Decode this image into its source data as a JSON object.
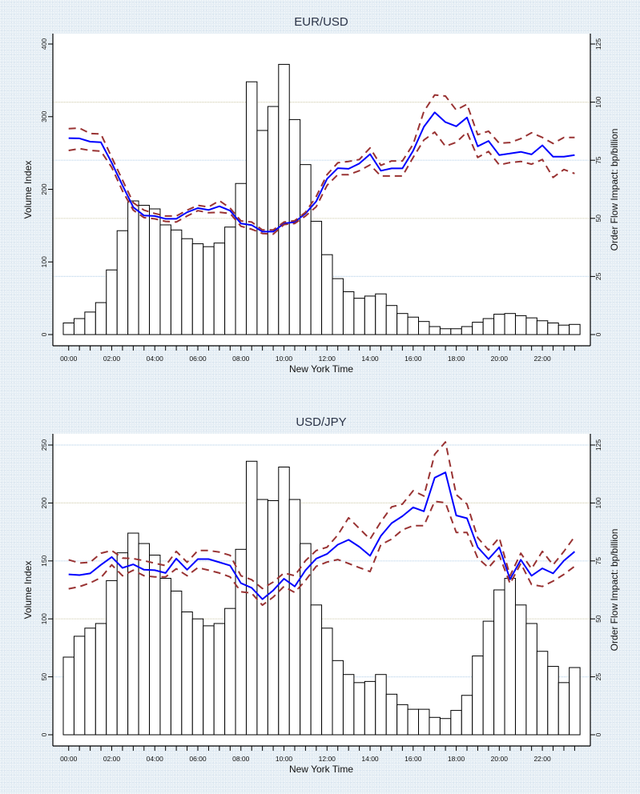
{
  "chart_data": [
    {
      "type": "bar",
      "title": "EUR/USD",
      "xlabel": "New York Time",
      "ylabel": "Volume Index",
      "y2label": "Order Flow Impact: bp/billion",
      "ylim": [
        0,
        400
      ],
      "y2lim": [
        0,
        125
      ],
      "yticks": [
        "0",
        "100",
        "200",
        "300",
        "400"
      ],
      "y2ticks": [
        "0",
        "25",
        "50",
        "75",
        "100",
        "125"
      ],
      "xticks": [
        "00:00",
        "02:00",
        "04:00",
        "06:00",
        "08:00",
        "10:00",
        "12:00",
        "14:00",
        "16:00",
        "18:00",
        "20:00",
        "22:00"
      ],
      "grid": "horizontal on right axis at 25, 50, 75, 100",
      "bin_minutes": 30,
      "series": [
        {
          "name": "Volume Index",
          "kind": "bar",
          "axis": "left",
          "values": [
            16,
            22,
            31,
            44,
            89,
            143,
            184,
            178,
            173,
            151,
            144,
            132,
            125,
            121,
            126,
            148,
            208,
            348,
            281,
            314,
            372,
            296,
            234,
            156,
            110,
            77,
            59,
            50,
            53,
            56,
            40,
            29,
            24,
            18,
            11,
            8,
            8,
            11,
            17,
            22,
            28,
            29,
            26,
            23,
            19,
            16,
            13,
            14
          ]
        },
        {
          "name": "Order Flow Impact",
          "kind": "line",
          "axis": "right",
          "color": "#0000ff",
          "values": [
            84.5,
            84.4,
            83,
            82.7,
            73.9,
            64.2,
            54.8,
            51.2,
            51,
            49.8,
            49.8,
            52.6,
            54.4,
            53.6,
            55.2,
            53.3,
            47.8,
            47.1,
            44.3,
            44.3,
            47.8,
            48.4,
            52.1,
            57.3,
            67,
            71.6,
            71.3,
            73.6,
            77.6,
            70.5,
            71.5,
            71.5,
            79.1,
            89.4,
            95.6,
            91.4,
            89.6,
            93.4,
            81,
            83.3,
            77.2,
            77.9,
            78.6,
            77.5,
            81.4,
            76.5,
            76.5,
            77.2
          ]
        },
        {
          "name": "Upper Band",
          "kind": "dashed-line",
          "axis": "right",
          "color": "#993333",
          "values": [
            88.6,
            88.8,
            86.5,
            86.3,
            76.2,
            66.5,
            56.7,
            53.5,
            52.1,
            51,
            51,
            53.5,
            55.6,
            54.9,
            57.6,
            54.4,
            48.9,
            48.4,
            45,
            45,
            48.4,
            49,
            52.6,
            59.4,
            68.8,
            73.9,
            74.5,
            75.3,
            80.3,
            72.8,
            74.7,
            74.7,
            81.9,
            96,
            103.1,
            102.6,
            96.6,
            99.1,
            86,
            87.5,
            82.3,
            82.6,
            84.3,
            86.8,
            84.8,
            82.2,
            84.8,
            84.8
          ]
        },
        {
          "name": "Lower Band",
          "kind": "dashed-line",
          "axis": "right",
          "color": "#993333",
          "values": [
            79.2,
            80,
            79.2,
            78.9,
            71.9,
            61.8,
            53.5,
            50.3,
            49.8,
            48.7,
            48.4,
            51,
            53.3,
            52.4,
            52.6,
            52.1,
            46.6,
            45.3,
            43.5,
            43.2,
            47.3,
            47.8,
            51,
            55,
            64.2,
            68.8,
            68.8,
            70.5,
            73,
            68.2,
            68.2,
            68.2,
            76.2,
            83.7,
            87.1,
            81,
            82.7,
            87.1,
            76.2,
            78.8,
            73,
            74,
            74.5,
            73.3,
            75.3,
            67.6,
            71,
            69.3
          ]
        }
      ]
    },
    {
      "type": "bar",
      "title": "USD/JPY",
      "xlabel": "New York Time",
      "ylabel": "Volume Index",
      "y2label": "Order Flow Impact: bp/billion",
      "ylim": [
        0,
        250
      ],
      "y2lim": [
        0,
        125
      ],
      "yticks": [
        "0",
        "50",
        "100",
        "150",
        "200",
        "250"
      ],
      "y2ticks": [
        "0",
        "25",
        "50",
        "75",
        "100",
        "125"
      ],
      "xticks": [
        "00:00",
        "02:00",
        "04:00",
        "06:00",
        "08:00",
        "10:00",
        "12:00",
        "14:00",
        "16:00",
        "18:00",
        "20:00",
        "22:00"
      ],
      "grid": "horizontal on right axis at 25, 50, 75, 100, 125",
      "bin_minutes": 30,
      "series": [
        {
          "name": "Volume Index",
          "kind": "bar",
          "axis": "left",
          "values": [
            67,
            85,
            92,
            96,
            133,
            157,
            174,
            165,
            155,
            135,
            124,
            106,
            100,
            94,
            96,
            109,
            160,
            236,
            203,
            202,
            231,
            203,
            165,
            112,
            92,
            64,
            52,
            45,
            46,
            52,
            35,
            26,
            22,
            22,
            15,
            14,
            21,
            34,
            68,
            98,
            125,
            135,
            112,
            96,
            72,
            59,
            45,
            58
          ]
        },
        {
          "name": "Order Flow Impact",
          "kind": "line",
          "axis": "right",
          "color": "#0000ff",
          "values": [
            69.2,
            68.9,
            69.6,
            73.3,
            76.7,
            72,
            73.5,
            71.2,
            71,
            69.8,
            76,
            71.2,
            75.8,
            75.8,
            74.4,
            73,
            65.4,
            63.4,
            58.5,
            62.3,
            67.3,
            64,
            71,
            76,
            78,
            82,
            84.1,
            81.1,
            77.2,
            85.8,
            91.3,
            94.3,
            98.1,
            96.4,
            110.9,
            113.2,
            94.6,
            93.4,
            80.9,
            75.8,
            80.9,
            67.1,
            75.5,
            68.6,
            71.8,
            69.6,
            75.1,
            79
          ]
        },
        {
          "name": "Upper Band",
          "kind": "dashed-line",
          "axis": "right",
          "color": "#993333",
          "values": [
            75.5,
            74.1,
            74.4,
            78.3,
            79.5,
            76.2,
            76,
            75.1,
            74,
            73,
            79.1,
            74.4,
            79.5,
            79.5,
            78.8,
            77.4,
            68.6,
            66.9,
            63.1,
            65.9,
            69.8,
            68.6,
            75.1,
            79.5,
            80.9,
            86.2,
            93.6,
            89,
            84.4,
            91.9,
            98.3,
            99.5,
            105.3,
            103,
            121,
            126.3,
            103.6,
            99.5,
            85,
            79.7,
            85,
            68.6,
            78.3,
            71.6,
            79.1,
            73.3,
            79.1,
            85.5
          ]
        },
        {
          "name": "Lower Band",
          "kind": "dashed-line",
          "axis": "right",
          "color": "#993333",
          "values": [
            63,
            63.9,
            65.5,
            67.8,
            73.3,
            68.6,
            71,
            68.6,
            68.1,
            68.1,
            71.6,
            68.6,
            72.1,
            71,
            69.8,
            68.1,
            61.7,
            61.1,
            55.9,
            59.4,
            64,
            61.4,
            66.6,
            72.7,
            74.5,
            75.6,
            73.9,
            72.1,
            70.4,
            82,
            84.4,
            88.4,
            90.2,
            90.2,
            100.7,
            100.1,
            87.3,
            87.3,
            76.2,
            72.1,
            77.4,
            65.2,
            73.9,
            64.8,
            64,
            66.3,
            69.2,
            72.7
          ]
        }
      ]
    }
  ]
}
